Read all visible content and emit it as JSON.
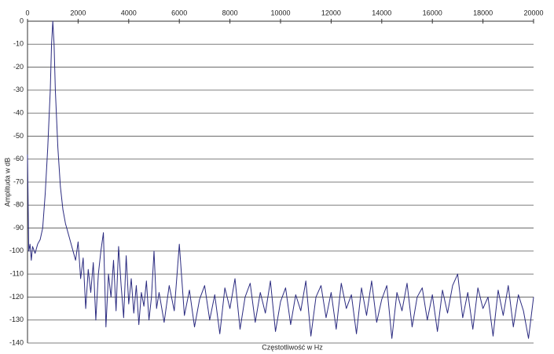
{
  "chart_data": {
    "type": "line",
    "xlabel": "Częstotliwość w Hz",
    "ylabel": "Amplituda w dB",
    "x": [
      0,
      50,
      100,
      150,
      200,
      300,
      400,
      500,
      600,
      700,
      800,
      900,
      950,
      1000,
      1050,
      1100,
      1200,
      1300,
      1400,
      1500,
      1600,
      1700,
      1800,
      1900,
      2000,
      2100,
      2200,
      2300,
      2400,
      2500,
      2600,
      2700,
      2800,
      2900,
      3000,
      3100,
      3200,
      3300,
      3400,
      3500,
      3600,
      3700,
      3800,
      3900,
      4000,
      4100,
      4200,
      4300,
      4400,
      4500,
      4600,
      4700,
      4800,
      4900,
      5000,
      5100,
      5200,
      5400,
      5600,
      5800,
      6000,
      6200,
      6400,
      6600,
      6800,
      7000,
      7200,
      7400,
      7600,
      7800,
      8000,
      8200,
      8400,
      8600,
      8800,
      9000,
      9200,
      9400,
      9600,
      9800,
      10000,
      10200,
      10400,
      10600,
      10800,
      11000,
      11200,
      11400,
      11600,
      11800,
      12000,
      12200,
      12400,
      12600,
      12800,
      13000,
      13200,
      13400,
      13600,
      13800,
      14000,
      14200,
      14400,
      14600,
      14800,
      15000,
      15200,
      15400,
      15600,
      15800,
      16000,
      16200,
      16400,
      16600,
      16800,
      17000,
      17200,
      17400,
      17600,
      17800,
      18000,
      18200,
      18400,
      18600,
      18800,
      19000,
      19200,
      19400,
      19600,
      19800,
      20000
    ],
    "series": [
      {
        "name": "Amplituda",
        "color": "#2b2b80",
        "values": [
          -58,
          -100,
          -97,
          -104,
          -98,
          -101,
          -97,
          -95,
          -90,
          -75,
          -55,
          -30,
          -10,
          0,
          -10,
          -30,
          -55,
          -72,
          -82,
          -88,
          -92,
          -96,
          -100,
          -104,
          -96,
          -112,
          -103,
          -125,
          -108,
          -118,
          -105,
          -130,
          -110,
          -100,
          -92,
          -133,
          -110,
          -120,
          -104,
          -126,
          -98,
          -115,
          -129,
          -102,
          -123,
          -112,
          -127,
          -115,
          -132,
          -118,
          -124,
          -113,
          -130,
          -120,
          -100,
          -125,
          -118,
          -131,
          -115,
          -126,
          -97,
          -128,
          -117,
          -133,
          -121,
          -115,
          -130,
          -119,
          -136,
          -116,
          -125,
          -112,
          -134,
          -120,
          -114,
          -131,
          -118,
          -127,
          -113,
          -135,
          -122,
          -116,
          -132,
          -119,
          -126,
          -113,
          -137,
          -120,
          -115,
          -129,
          -118,
          -134,
          -114,
          -125,
          -119,
          -136,
          -116,
          -128,
          -113,
          -131,
          -121,
          -115,
          -138,
          -118,
          -126,
          -114,
          -133,
          -120,
          -116,
          -130,
          -119,
          -135,
          -117,
          -127,
          -115,
          -110,
          -129,
          -118,
          -134,
          -116,
          -125,
          -120,
          -137,
          -117,
          -128,
          -115,
          -133,
          -119,
          -126,
          -138,
          -120
        ]
      }
    ],
    "xlim": [
      0,
      20000
    ],
    "xticks": [
      0,
      2000,
      4000,
      6000,
      8000,
      10000,
      12000,
      14000,
      16000,
      18000,
      20000
    ],
    "ylim": [
      -140,
      0
    ],
    "yticks": [
      0,
      -10,
      -20,
      -30,
      -40,
      -50,
      -60,
      -70,
      -80,
      -90,
      -100,
      -110,
      -120,
      -130,
      -140
    ],
    "grid": true
  }
}
